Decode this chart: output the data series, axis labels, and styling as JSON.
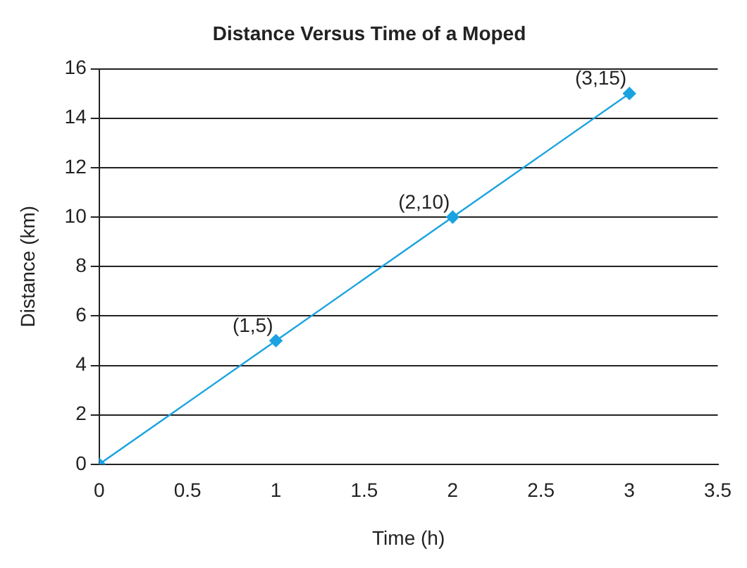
{
  "chart_data": {
    "type": "line",
    "title": "Distance Versus Time of a Moped",
    "xlabel": "Time (h)",
    "ylabel": "Distance (km)",
    "x": [
      0,
      1,
      2,
      3
    ],
    "values": [
      0,
      5,
      10,
      15
    ],
    "annotations": [
      {
        "text": "(1,5)",
        "x": 1,
        "y": 5
      },
      {
        "text": "(2,10)",
        "x": 2,
        "y": 10
      },
      {
        "text": "(3,15)",
        "x": 3,
        "y": 15
      }
    ],
    "color": "#1aa3e0",
    "marker": "diamond",
    "line_style": "solid",
    "xlim": [
      0,
      3.5
    ],
    "xticks": [
      0,
      0.5,
      1,
      1.5,
      2,
      2.5,
      3,
      3.5
    ],
    "ylim": [
      0,
      16
    ],
    "yticks": [
      0,
      2,
      4,
      6,
      8,
      10,
      12,
      14,
      16
    ],
    "grid": "y",
    "legend": false
  }
}
